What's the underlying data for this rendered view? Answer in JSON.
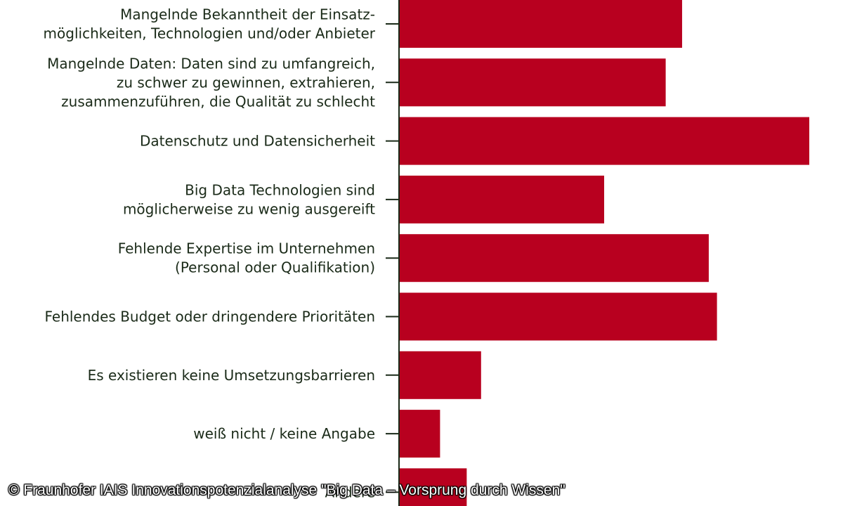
{
  "chart_data": {
    "type": "bar",
    "orientation": "horizontal",
    "categories": [
      [
        "Mangelnde Bekanntheit der Einsatz-",
        "möglichkeiten, Technologien und/oder Anbieter"
      ],
      [
        "Mangelnde Daten: Daten sind zu umfangreich,",
        "zu schwer zu gewinnen, extrahieren,",
        "zusammenzuführen, die Qualität zu schlecht"
      ],
      [
        "Datenschutz und Datensicherheit"
      ],
      [
        "Big Data Technologien sind",
        "möglicherweise zu wenig ausgereift"
      ],
      [
        "Fehlende Expertise im Unternehmen",
        "(Personal oder Qualifikation)"
      ],
      [
        "Fehlendes Budget oder dringendere Prioritäten"
      ],
      [
        "Es existieren keine Umsetzungsbarrieren"
      ],
      [
        "weiß nicht / keine Angabe"
      ],
      [
        "Andere"
      ]
    ],
    "values": [
      69,
      65,
      100,
      50,
      75.5,
      77.5,
      20,
      10,
      16.5
    ],
    "xlim": [
      0,
      100
    ],
    "bar_color": "#b8001f",
    "axis_color": "#1a2a18",
    "grid": false,
    "legend": "none"
  },
  "credit": "© Fraunhofer IAIS Innovationspotenzialanalyse \"Big Data – Vorsprung durch Wissen\""
}
